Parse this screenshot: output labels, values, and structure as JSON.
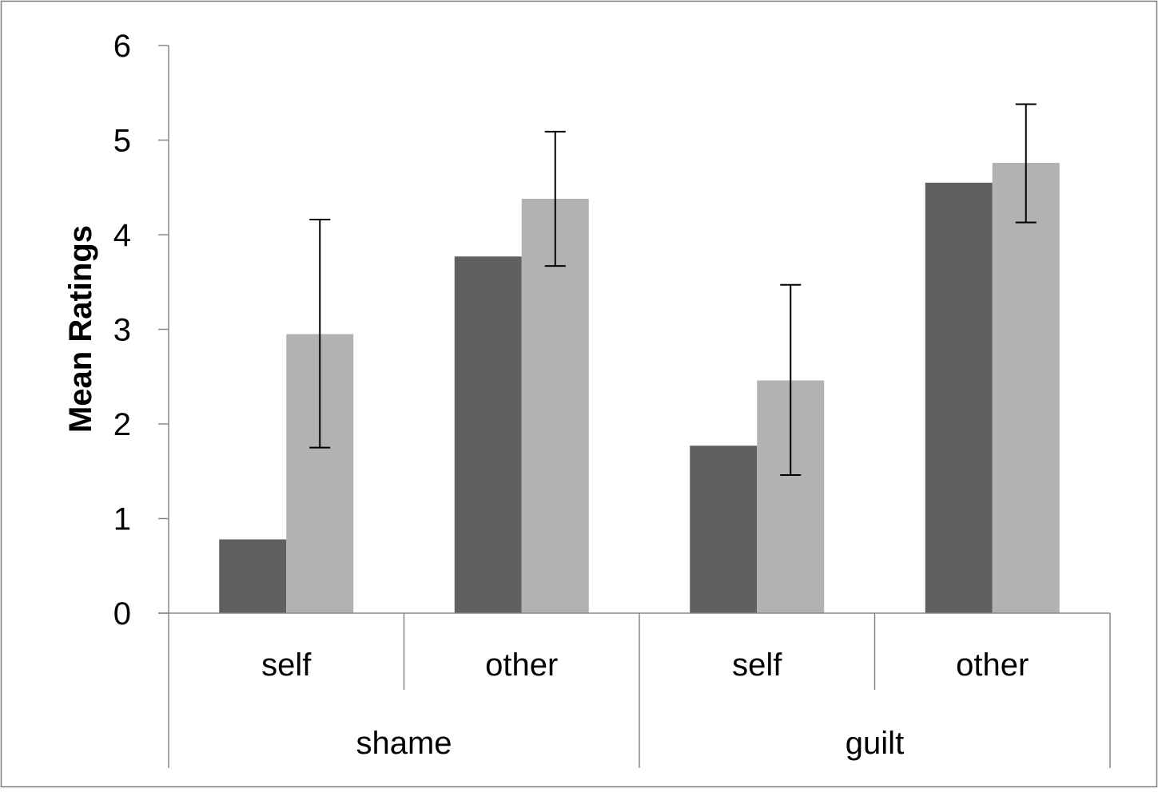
{
  "chart_data": {
    "type": "bar",
    "ylabel": "Mean Ratings",
    "xlabel": "",
    "ylim": [
      0,
      6
    ],
    "yticks": [
      0,
      1,
      2,
      3,
      4,
      5,
      6
    ],
    "groups": [
      {
        "label": "shame",
        "categories": [
          "self",
          "other"
        ]
      },
      {
        "label": "guilt",
        "categories": [
          "self",
          "other"
        ]
      }
    ],
    "series": [
      {
        "color": "#606060",
        "values": [
          0.78,
          3.77,
          1.77,
          4.55
        ]
      },
      {
        "color": "#b2b2b2",
        "values": [
          2.95,
          4.38,
          2.46,
          4.76
        ],
        "error_low": [
          1.75,
          3.67,
          1.46,
          4.13
        ],
        "error_high": [
          4.16,
          5.09,
          3.47,
          5.38
        ]
      }
    ],
    "grid": false,
    "legend": "none"
  }
}
